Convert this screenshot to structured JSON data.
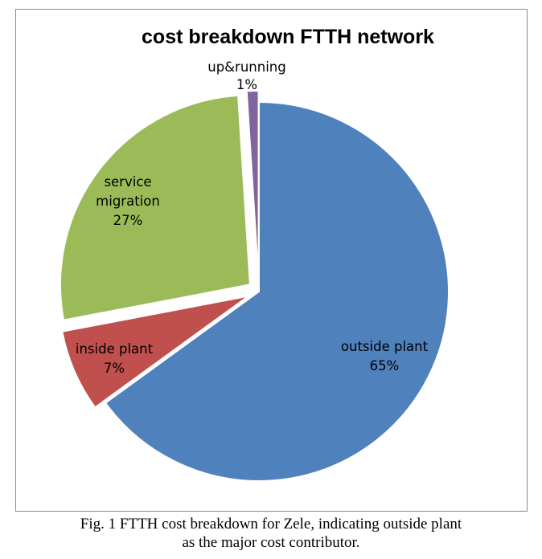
{
  "chart_data": {
    "type": "pie",
    "title": "cost breakdown FTTH network",
    "slices": [
      {
        "label": "outside plant",
        "value": 65,
        "value_label": "65%",
        "color": "#4f81bd",
        "exploded": false
      },
      {
        "label": "inside plant",
        "value": 7,
        "value_label": "7%",
        "color": "#c0504d",
        "exploded": true
      },
      {
        "label": "service migration",
        "value": 27,
        "value_label": "27%",
        "color": "#9bbb59",
        "exploded": true
      },
      {
        "label": "up&running",
        "value": 1,
        "value_label": "1%",
        "color": "#8064a2",
        "exploded": true
      }
    ],
    "legend": "none"
  },
  "caption": {
    "line1": "Fig. 1 FTTH cost breakdown for Zele, indicating outside plant",
    "line2": "as the major cost contributor."
  }
}
